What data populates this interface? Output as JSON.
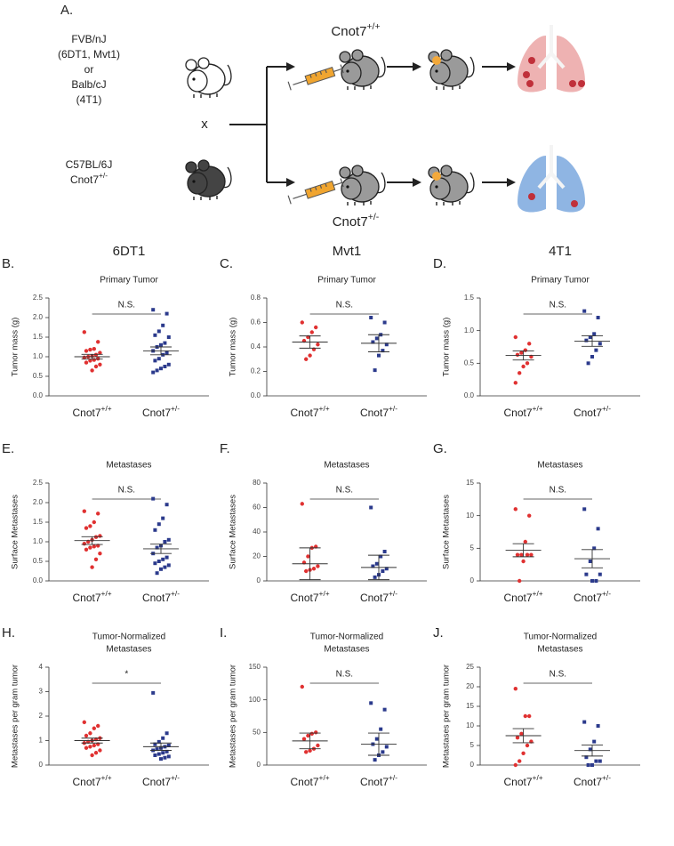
{
  "diagram": {
    "panel": "A.",
    "strain_lines": [
      "FVB/nJ",
      "(6DT1, Mvt1)",
      "or",
      "Balb/cJ",
      "(4T1)"
    ],
    "cross": "x",
    "partner_lines": [
      "C57BL/6J",
      "Cnot7+/-"
    ],
    "top_group": "Cnot7+/+",
    "bottom_group": "Cnot7+/-"
  },
  "chart_data": [
    {
      "type": "strip",
      "panel": "B.",
      "title": "6DT1",
      "subtitle": [
        "Primary Tumor"
      ],
      "y_label": "Tumor mass (g)",
      "categories": [
        "Cnot7+/+",
        "Cnot7+/-"
      ],
      "ylim": [
        0,
        2.5
      ],
      "yticks": [
        {
          "value": 0,
          "label": "0.0"
        },
        0.5,
        {
          "value": 1,
          "label": "1.0"
        },
        1.5,
        {
          "value": 2,
          "label": "2.0"
        },
        2.5
      ],
      "annotation": "N.S.",
      "series": [
        {
          "color": "#e03131",
          "marker": "circle",
          "values": [
            1.63,
            1.38,
            1.2,
            1.18,
            1.15,
            1.1,
            1.05,
            1.02,
            1.0,
            0.98,
            0.95,
            0.92,
            0.9,
            0.85,
            0.8,
            0.75,
            0.65
          ],
          "mean": 1.0,
          "sem": 0.06
        },
        {
          "color": "#2b3a8c",
          "marker": "square",
          "values": [
            2.2,
            2.1,
            1.8,
            1.65,
            1.55,
            1.5,
            1.35,
            1.3,
            1.25,
            1.15,
            1.1,
            1.05,
            0.95,
            0.9,
            0.8,
            0.75,
            0.7,
            0.65,
            0.6
          ],
          "mean": 1.15,
          "sem": 0.1
        }
      ]
    },
    {
      "type": "strip",
      "panel": "C.",
      "title": "Mvt1",
      "subtitle": [
        "Primary Tumor"
      ],
      "y_label": "Tumor mass (g)",
      "categories": [
        "Cnot7+/+",
        "Cnot7+/-"
      ],
      "ylim": [
        0,
        0.8
      ],
      "yticks": [
        {
          "value": 0,
          "label": "0.0"
        },
        0.2,
        0.4,
        0.6,
        0.8
      ],
      "annotation": "N.S.",
      "series": [
        {
          "color": "#e03131",
          "marker": "circle",
          "values": [
            0.6,
            0.56,
            0.52,
            0.48,
            0.45,
            0.42,
            0.38,
            0.33,
            0.3
          ],
          "mean": 0.44,
          "sem": 0.05
        },
        {
          "color": "#2b3a8c",
          "marker": "square",
          "values": [
            0.64,
            0.6,
            0.5,
            0.47,
            0.44,
            0.42,
            0.37,
            0.33,
            0.21
          ],
          "mean": 0.43,
          "sem": 0.07
        }
      ]
    },
    {
      "type": "strip",
      "panel": "D.",
      "title": "4T1",
      "subtitle": [
        "Primary Tumor"
      ],
      "y_label": "Tumor mass (g)",
      "categories": [
        "Cnot7+/+",
        "Cnot7+/-"
      ],
      "ylim": [
        0,
        1.5
      ],
      "yticks": [
        {
          "value": 0,
          "label": "0.0"
        },
        0.5,
        {
          "value": 1,
          "label": "1.0"
        },
        1.5
      ],
      "annotation": "N.S.",
      "series": [
        {
          "color": "#e03131",
          "marker": "circle",
          "values": [
            0.9,
            0.8,
            0.7,
            0.66,
            0.63,
            0.6,
            0.5,
            0.45,
            0.35,
            0.2
          ],
          "mean": 0.62,
          "sem": 0.07
        },
        {
          "color": "#2b3a8c",
          "marker": "square",
          "values": [
            1.3,
            1.2,
            0.95,
            0.9,
            0.85,
            0.8,
            0.7,
            0.6,
            0.5
          ],
          "mean": 0.84,
          "sem": 0.08
        }
      ]
    },
    {
      "type": "strip",
      "panel": "E.",
      "subtitle": [
        "Metastases"
      ],
      "y_label": "Surface Metastases",
      "categories": [
        "Cnot7+/+",
        "Cnot7+/-"
      ],
      "ylim": [
        0,
        2.5
      ],
      "yticks": [
        {
          "value": 0,
          "label": "0.0"
        },
        0.5,
        {
          "value": 1,
          "label": "1.0"
        },
        1.5,
        {
          "value": 2,
          "label": "2.0"
        },
        2.5
      ],
      "annotation": "N.S.",
      "series": [
        {
          "color": "#e03131",
          "marker": "circle",
          "values": [
            1.78,
            1.72,
            1.5,
            1.4,
            1.35,
            1.15,
            1.12,
            1.05,
            1.0,
            0.95,
            0.9,
            0.88,
            0.85,
            0.8,
            0.7,
            0.55,
            0.35
          ],
          "mean": 1.03,
          "sem": 0.1
        },
        {
          "color": "#2b3a8c",
          "marker": "square",
          "values": [
            2.1,
            1.95,
            1.6,
            1.45,
            1.3,
            1.05,
            1.0,
            0.9,
            0.85,
            0.7,
            0.6,
            0.55,
            0.5,
            0.45,
            0.4,
            0.35,
            0.3,
            0.2
          ],
          "mean": 0.82,
          "sem": 0.12
        }
      ]
    },
    {
      "type": "strip",
      "panel": "F.",
      "subtitle": [
        "Metastases"
      ],
      "y_label": "Surface Metastases",
      "categories": [
        "Cnot7+/+",
        "Cnot7+/-"
      ],
      "ylim": [
        0,
        80
      ],
      "yticks": [
        0,
        20,
        40,
        60,
        80
      ],
      "annotation": "N.S.",
      "series": [
        {
          "color": "#e03131",
          "marker": "circle",
          "values": [
            63,
            28,
            27,
            20,
            15,
            12,
            10,
            9,
            8
          ],
          "mean": 14,
          "sem": 13
        },
        {
          "color": "#2b3a8c",
          "marker": "square",
          "values": [
            60,
            24,
            20,
            14,
            12,
            10,
            8,
            5,
            3
          ],
          "mean": 11,
          "sem": 10
        }
      ]
    },
    {
      "type": "strip",
      "panel": "G.",
      "subtitle": [
        "Metastases"
      ],
      "y_label": "Surface Metastases",
      "categories": [
        "Cnot7+/+",
        "Cnot7+/-"
      ],
      "ylim": [
        0,
        15
      ],
      "yticks": [
        0,
        5,
        10,
        15
      ],
      "annotation": "N.S.",
      "series": [
        {
          "color": "#e03131",
          "marker": "circle",
          "values": [
            11,
            10,
            6,
            4,
            4,
            4,
            4,
            3,
            0
          ],
          "mean": 4.7,
          "sem": 1
        },
        {
          "color": "#2b3a8c",
          "marker": "square",
          "values": [
            11,
            8,
            5,
            3,
            1,
            1,
            0,
            0
          ],
          "mean": 3.4,
          "sem": 1.4
        }
      ]
    },
    {
      "type": "strip",
      "panel": "H.",
      "subtitle": [
        "Tumor-Normalized",
        "Metastases"
      ],
      "y_label": "Metastases per gram tumor",
      "categories": [
        "Cnot7+/+",
        "Cnot7+/-"
      ],
      "ylim": [
        0,
        4
      ],
      "yticks": [
        0,
        1,
        2,
        3,
        4
      ],
      "annotation": "*",
      "series": [
        {
          "color": "#e03131",
          "marker": "circle",
          "values": [
            1.75,
            1.6,
            1.5,
            1.3,
            1.2,
            1.1,
            1.05,
            1.0,
            0.95,
            0.9,
            0.85,
            0.8,
            0.75,
            0.7,
            0.6,
            0.5,
            0.4
          ],
          "mean": 1.0,
          "sem": 0.1
        },
        {
          "color": "#2b3a8c",
          "marker": "square",
          "values": [
            2.95,
            1.3,
            1.1,
            0.95,
            0.85,
            0.8,
            0.75,
            0.7,
            0.65,
            0.6,
            0.55,
            0.5,
            0.45,
            0.4,
            0.35,
            0.3,
            0.25
          ],
          "mean": 0.75,
          "sem": 0.15
        }
      ]
    },
    {
      "type": "strip",
      "panel": "I.",
      "subtitle": [
        "Tumor-Normalized",
        "Metastases"
      ],
      "y_label": "Metastases per gram tumor",
      "categories": [
        "Cnot7+/+",
        "Cnot7+/-"
      ],
      "ylim": [
        0,
        150
      ],
      "yticks": [
        0,
        50,
        100,
        150
      ],
      "annotation": "N.S.",
      "series": [
        {
          "color": "#e03131",
          "marker": "circle",
          "values": [
            120,
            50,
            48,
            45,
            40,
            30,
            25,
            22,
            20
          ],
          "mean": 37,
          "sem": 12
        },
        {
          "color": "#2b3a8c",
          "marker": "square",
          "values": [
            95,
            85,
            55,
            40,
            32,
            28,
            20,
            15,
            8
          ],
          "mean": 32,
          "sem": 17
        }
      ]
    },
    {
      "type": "strip",
      "panel": "J.",
      "subtitle": [
        "Tumor-Normalized",
        "Metastases"
      ],
      "y_label": "Metastases per gram tumor",
      "categories": [
        "Cnot7+/+",
        "Cnot7+/-"
      ],
      "ylim": [
        0,
        25
      ],
      "yticks": [
        0,
        5,
        10,
        15,
        20,
        25
      ],
      "annotation": "N.S.",
      "series": [
        {
          "color": "#e03131",
          "marker": "circle",
          "values": [
            19.5,
            12.5,
            12.5,
            8,
            7,
            6,
            5,
            3,
            1,
            0
          ],
          "mean": 7.5,
          "sem": 1.8
        },
        {
          "color": "#2b3a8c",
          "marker": "square",
          "values": [
            11,
            10,
            6,
            4,
            2,
            1,
            1,
            0,
            0
          ],
          "mean": 3.7,
          "sem": 1.4
        }
      ]
    }
  ]
}
